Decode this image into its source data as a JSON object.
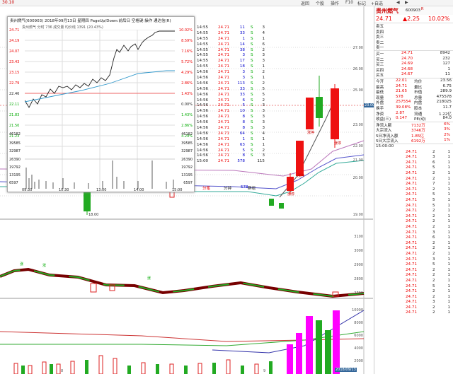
{
  "topbar": {
    "code": "30.10",
    "buttons": [
      "返回",
      "个股",
      "操作",
      "F10",
      "标记",
      "+自选",
      "◀",
      "▶"
    ]
  },
  "chart": {
    "price_labels": [
      {
        "v": "27.00"
      },
      {
        "v": "26.00"
      },
      {
        "v": "25.00"
      },
      {
        "v": "23.00"
      },
      {
        "v": "22.00"
      },
      {
        "v": "21.00"
      },
      {
        "v": "20.00"
      },
      {
        "v": "19.00"
      }
    ],
    "current_price_tag": "23.00",
    "macd_labels": [
      "3100",
      "3000",
      "2900",
      "2800",
      "2700"
    ],
    "vol_labels": [
      "10000",
      "8000",
      "6000",
      "4000",
      "2000"
    ],
    "bottom_date": "2018/09/13",
    "low_label": "18.00",
    "stamps": [
      "涨停",
      "涨停",
      "涨停",
      "涨停"
    ],
    "flags": [
      "涨",
      "涨",
      "涨"
    ],
    "axis_marks": [
      "8",
      "9"
    ]
  },
  "popup": {
    "title": "贵州燃气(600903)  2018年09月13日 星期四 PageUp/Down:前后日 空格键:操作 通达信(R)",
    "subtitle": "贵州燃气 分时 736 成交量 均价线 1391 (20.43%)",
    "left_prices": [
      "24.71",
      "24.19",
      "24.07",
      "23.43",
      "23.15",
      "22.79",
      "22.46",
      "22.11",
      "21.83",
      "21.50",
      "21.23",
      "20.80",
      "20.43"
    ],
    "right_pcts": [
      "10.02%",
      "8.59%",
      "7.16%",
      "5.72%",
      "4.29%",
      "2.86%",
      "1.43%",
      "0.00%",
      "1.43%",
      "2.86%",
      "4.29%",
      "5.72%",
      "7.16%"
    ],
    "vol_left": [
      "46182",
      "39585",
      "32987",
      "26390",
      "19792",
      "13195",
      "6597"
    ],
    "vol_right": [
      "46182",
      "39585",
      "32987",
      "26390",
      "19792",
      "13195",
      "6597"
    ],
    "time_axis": [
      "09:30",
      "10:30",
      "13:00",
      "14:00",
      "15:00"
    ]
  },
  "ticks": {
    "rows": [
      {
        "t": "14:55",
        "p": "24.71",
        "v": "11",
        "s": "S",
        "n": "3"
      },
      {
        "t": "14:55",
        "p": "24.71",
        "v": "33",
        "s": "S",
        "n": "4"
      },
      {
        "t": "14:55",
        "p": "24.71",
        "v": "1",
        "s": "S",
        "n": "1"
      },
      {
        "t": "14:55",
        "p": "24.71",
        "v": "14",
        "s": "S",
        "n": "6"
      },
      {
        "t": "14:55",
        "p": "24.71",
        "v": "38",
        "s": "S",
        "n": "2"
      },
      {
        "t": "14:55",
        "p": "24.71",
        "v": "3",
        "s": "S",
        "n": "3"
      },
      {
        "t": "14:55",
        "p": "24.71",
        "v": "17",
        "s": "S",
        "n": "3"
      },
      {
        "t": "14:55",
        "p": "24.71",
        "v": "18",
        "s": "S",
        "n": "1"
      },
      {
        "t": "14:56",
        "p": "24.71",
        "v": "3",
        "s": "S",
        "n": "2"
      },
      {
        "t": "14:56",
        "p": "24.71",
        "v": "3",
        "s": "S",
        "n": "1"
      },
      {
        "t": "14:56",
        "p": "24.71",
        "v": "113",
        "s": "S",
        "n": "2"
      },
      {
        "t": "14:56",
        "p": "24.71",
        "v": "33",
        "s": "S",
        "n": "5"
      },
      {
        "t": "14:56",
        "p": "24.71",
        "v": "33",
        "s": "S",
        "n": "5"
      },
      {
        "t": "14:56",
        "p": "24.71",
        "v": "6",
        "s": "S",
        "n": "2"
      },
      {
        "t": "14:56",
        "p": "24.71",
        "v": "5",
        "s": "S",
        "n": "3"
      },
      {
        "t": "14:56",
        "p": "24.71",
        "v": "10",
        "s": "S",
        "n": "3"
      },
      {
        "t": "14:56",
        "p": "24.71",
        "v": "8",
        "s": "S",
        "n": "3"
      },
      {
        "t": "14:56",
        "p": "24.71",
        "v": "8",
        "s": "S",
        "n": "3"
      },
      {
        "t": "14:56",
        "p": "24.71",
        "v": "8",
        "s": "S",
        "n": "3"
      },
      {
        "t": "14:56",
        "p": "24.71",
        "v": "64",
        "s": "S",
        "n": "4"
      },
      {
        "t": "14:56",
        "p": "24.71",
        "v": "1",
        "s": "S",
        "n": "1"
      },
      {
        "t": "14:56",
        "p": "24.71",
        "v": "63",
        "s": "S",
        "n": "1"
      },
      {
        "t": "14:56",
        "p": "24.71",
        "v": "5",
        "s": "S",
        "n": "2"
      },
      {
        "t": "14:56",
        "p": "24.71",
        "v": "8",
        "s": "S",
        "n": "3"
      },
      {
        "t": "15:00",
        "p": "24.71",
        "v": "578",
        "s": "",
        "n": "115"
      }
    ],
    "footer": [
      "分笔",
      "分钟",
      "578",
      "群组"
    ]
  },
  "right_panel": {
    "name": "贵州燃气",
    "code": "600903",
    "flag": "R",
    "price": "24.71",
    "change": "▲2.25",
    "pct": "10.02%",
    "ask": [
      {
        "l": "卖五",
        "p": "",
        "v": ""
      },
      {
        "l": "卖四",
        "p": "",
        "v": ""
      },
      {
        "l": "卖三",
        "p": "",
        "v": ""
      },
      {
        "l": "卖二",
        "p": "",
        "v": ""
      },
      {
        "l": "卖一",
        "p": "",
        "v": ""
      }
    ],
    "bid": [
      {
        "l": "买一",
        "p": "24.71",
        "v": "8942"
      },
      {
        "l": "买二",
        "p": "24.70",
        "v": "232"
      },
      {
        "l": "买三",
        "p": "24.69",
        "v": "127"
      },
      {
        "l": "买四",
        "p": "24.68",
        "v": "1"
      },
      {
        "l": "买五",
        "p": "24.67",
        "v": "11"
      }
    ],
    "stats": [
      {
        "a": "今开",
        "b": "22.01",
        "c": "均价",
        "d": "23.56"
      },
      {
        "a": "最高",
        "b": "24.71",
        "c": "量比",
        "d": "6.75"
      },
      {
        "a": "最低",
        "b": "21.65",
        "c": "市值",
        "d": "289.9"
      },
      {
        "a": "现量",
        "b": "578",
        "c": "总量",
        "d": "475578"
      },
      {
        "a": "外盘",
        "b": "257554",
        "c": "内盘",
        "d": "218025"
      },
      {
        "a": "换手",
        "b": "39.08%",
        "c": "股本",
        "d": "11.7"
      },
      {
        "a": "净资",
        "b": "2.87",
        "c": "流通",
        "d": "1.22亿"
      },
      {
        "a": "收益(三)",
        "b": "0.147",
        "c": "PE(动)",
        "d": "84.0"
      }
    ],
    "flows": [
      {
        "a": "净流入额",
        "b": "7132万",
        "c": "6%"
      },
      {
        "a": "大宗流入",
        "b": "3746万",
        "c": "3%"
      },
      {
        "a": "5日净流入额",
        "b": "1.85亿",
        "c": "2%"
      },
      {
        "a": "5日大宗流入",
        "b": "6192万",
        "c": "1%"
      }
    ],
    "trades": [
      {
        "t": "15:00:00",
        "p": "",
        "v": "",
        "n": ""
      },
      {
        "t": "",
        "p": "24.71",
        "v": "2",
        "n": "1"
      },
      {
        "t": "",
        "p": "24.71",
        "v": "3",
        "n": "1"
      },
      {
        "t": "",
        "p": "24.71",
        "v": "6",
        "n": "1"
      },
      {
        "t": "",
        "p": "24.71",
        "v": "5",
        "n": "1"
      },
      {
        "t": "",
        "p": "24.71",
        "v": "2",
        "n": "1"
      },
      {
        "t": "",
        "p": "24.71",
        "v": "2",
        "n": "1"
      },
      {
        "t": "",
        "p": "24.71",
        "v": "7",
        "n": "1"
      },
      {
        "t": "",
        "p": "24.71",
        "v": "2",
        "n": "1"
      },
      {
        "t": "",
        "p": "24.71",
        "v": "5",
        "n": "1"
      },
      {
        "t": "",
        "p": "24.71",
        "v": "5",
        "n": "1"
      },
      {
        "t": "",
        "p": "24.71",
        "v": "5",
        "n": "1"
      },
      {
        "t": "",
        "p": "24.71",
        "v": "2",
        "n": "1"
      },
      {
        "t": "",
        "p": "24.71",
        "v": "2",
        "n": "1"
      },
      {
        "t": "",
        "p": "24.71",
        "v": "2",
        "n": "1"
      },
      {
        "t": "",
        "p": "24.71",
        "v": "2",
        "n": "1"
      },
      {
        "t": "",
        "p": "24.71",
        "v": "3",
        "n": "1"
      },
      {
        "t": "",
        "p": "24.71",
        "v": "6",
        "n": "1"
      },
      {
        "t": "",
        "p": "24.71",
        "v": "2",
        "n": "1"
      },
      {
        "t": "",
        "p": "24.71",
        "v": "2",
        "n": "1"
      },
      {
        "t": "",
        "p": "24.71",
        "v": "2",
        "n": "1"
      },
      {
        "t": "",
        "p": "24.71",
        "v": "3",
        "n": "1"
      },
      {
        "t": "",
        "p": "24.71",
        "v": "5",
        "n": "1"
      },
      {
        "t": "",
        "p": "24.71",
        "v": "2",
        "n": "1"
      },
      {
        "t": "",
        "p": "24.71",
        "v": "2",
        "n": "1"
      },
      {
        "t": "",
        "p": "24.71",
        "v": "2",
        "n": "1"
      },
      {
        "t": "",
        "p": "24.71",
        "v": "5",
        "n": "1"
      },
      {
        "t": "",
        "p": "24.71",
        "v": "2",
        "n": "1"
      },
      {
        "t": "",
        "p": "24.71",
        "v": "2",
        "n": "1"
      },
      {
        "t": "",
        "p": "24.71",
        "v": "3",
        "n": "1"
      },
      {
        "t": "",
        "p": "24.71",
        "v": "2",
        "n": "1"
      },
      {
        "t": "",
        "p": "24.71",
        "v": "2",
        "n": "1"
      }
    ]
  }
}
